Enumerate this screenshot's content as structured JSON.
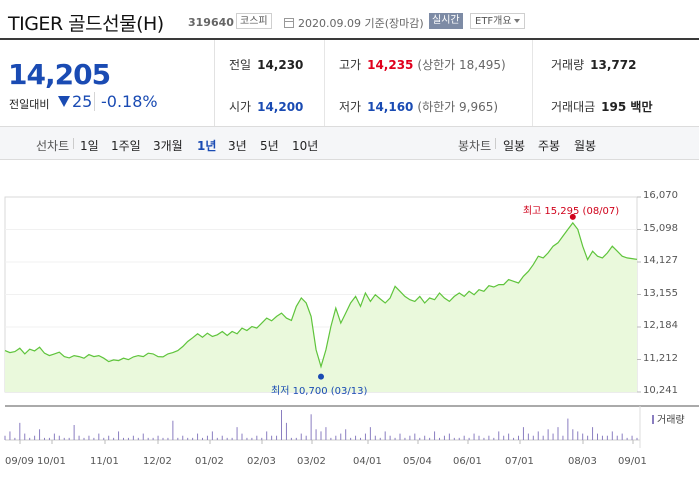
{
  "header": {
    "name": "TIGER 골드선물(H)",
    "code": "319640",
    "market": "코스피",
    "date": "2020.09.09 기준(장마감)",
    "realtime": "실시간",
    "etf_overview": "ETF개요"
  },
  "quote": {
    "price": "14,205",
    "change_label": "전일대비",
    "change": "25",
    "change_pct": "-0.18%"
  },
  "stats": {
    "prev_close": {
      "label": "전일",
      "value": "14,230"
    },
    "open": {
      "label": "시가",
      "value": "14,200"
    },
    "high": {
      "label": "고가",
      "value": "14,235",
      "sub": "(상한가 18,495)"
    },
    "low": {
      "label": "저가",
      "value": "14,160",
      "sub": "(하한가 9,965)"
    },
    "volume": {
      "label": "거래량",
      "value": "13,772"
    },
    "amount": {
      "label": "거래대금",
      "value": "195 백만"
    }
  },
  "periods": {
    "line_label": "선차트",
    "line_items": [
      "1일",
      "1주일",
      "3개월",
      "1년",
      "3년",
      "5년",
      "10년"
    ],
    "active": "1년",
    "candle_label": "봉차트",
    "candle_items": [
      "일봉",
      "주봉",
      "월봉"
    ]
  },
  "colors": {
    "accent_blue": "#1a4bb3",
    "up_red": "#e0001d",
    "line_green": "#5fc43c",
    "area_green": "#e9f9d8",
    "volume_purple": "#8a7ec0"
  },
  "chart_data": {
    "type": "area",
    "title": "",
    "xlabel": "",
    "ylabel": "",
    "ylim": [
      10241,
      16070
    ],
    "yticks": [
      "16,070",
      "15,098",
      "14,127",
      "13,155",
      "12,184",
      "11,212",
      "10,241"
    ],
    "xticks": [
      "09/09",
      "10/01",
      "11/01",
      "12/02",
      "01/02",
      "02/03",
      "03/02",
      "04/01",
      "05/04",
      "06/01",
      "07/01",
      "08/03",
      "09/01"
    ],
    "series": [
      {
        "values": [
          11480,
          11420,
          11450,
          11550,
          11380,
          11520,
          11470,
          11580,
          11400,
          11330,
          11380,
          11430,
          11300,
          11260,
          11330,
          11300,
          11250,
          11360,
          11300,
          11330,
          11250,
          11150,
          11200,
          11180,
          11250,
          11210,
          11290,
          11330,
          11300,
          11400,
          11380,
          11300,
          11290,
          11380,
          11420,
          11480,
          11600,
          11750,
          11860,
          11980,
          11880,
          12000,
          11900,
          11950,
          12050,
          11930,
          12050,
          11980,
          12150,
          12080,
          12200,
          12150,
          12300,
          12450,
          12370,
          12500,
          12600,
          12450,
          12380,
          12800,
          13050,
          12900,
          12500,
          11500,
          11000,
          11500,
          12200,
          12750,
          12300,
          12600,
          12900,
          13100,
          12800,
          13200,
          12950,
          13150,
          13020,
          12900,
          13050,
          13400,
          13250,
          13100,
          13000,
          12950,
          13100,
          12900,
          13050,
          13000,
          13200,
          13050,
          12950,
          13100,
          13200,
          13100,
          13250,
          13150,
          13300,
          13250,
          13420,
          13380,
          13450,
          13450,
          13600,
          13550,
          13500,
          13700,
          13850,
          14050,
          14300,
          14250,
          14400,
          14600,
          14700,
          14900,
          15100,
          15295,
          15100,
          14600,
          14200,
          14450,
          14300,
          14250,
          14400,
          14600,
          14450,
          14300,
          14250,
          14230,
          14205
        ],
        "high": {
          "label": "최고 15,295 (08/07)",
          "value": 15295
        },
        "low": {
          "label": "최저 10,700 (03/13)",
          "value": 10700
        }
      }
    ],
    "volume_label": "거래량",
    "volume": [
      2,
      4,
      1,
      8,
      3,
      1,
      2,
      5,
      1,
      1,
      3,
      2,
      1,
      1,
      7,
      2,
      1,
      2,
      1,
      3,
      1,
      2,
      1,
      4,
      1,
      1,
      2,
      1,
      3,
      1,
      1,
      2,
      1,
      1,
      9,
      1,
      2,
      1,
      1,
      3,
      1,
      2,
      4,
      1,
      2,
      1,
      1,
      6,
      3,
      1,
      1,
      2,
      1,
      4,
      2,
      2,
      14,
      8,
      1,
      1,
      3,
      2,
      12,
      5,
      4,
      6,
      1,
      2,
      3,
      5,
      1,
      2,
      1,
      3,
      6,
      2,
      1,
      4,
      2,
      1,
      3,
      1,
      2,
      3,
      1,
      2,
      1,
      4,
      1,
      2,
      3,
      1,
      1,
      2,
      1,
      3,
      2,
      1,
      2,
      1,
      4,
      2,
      3,
      1,
      2,
      6,
      3,
      2,
      4,
      2,
      5,
      3,
      6,
      2,
      10,
      5,
      4,
      3,
      2,
      6,
      3,
      2,
      2,
      4,
      2,
      3,
      1,
      2,
      1
    ]
  }
}
